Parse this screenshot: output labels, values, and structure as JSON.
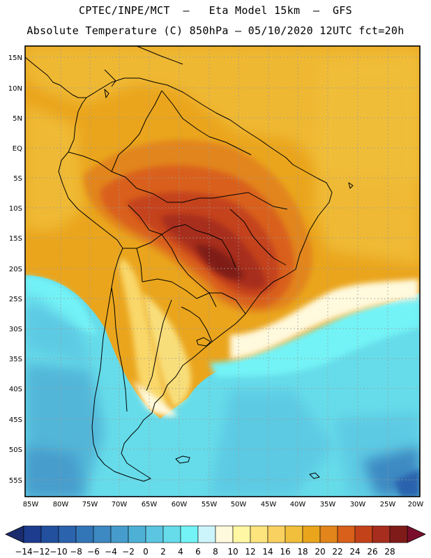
{
  "header": {
    "line1": "CPTEC/INPE/MCT  –   Eta Model 15km  –  GFS",
    "line2": "Absolute Temperature (C) 850hPa – 05/10/2020 12UTC fct=20h"
  },
  "map": {
    "region": "South America",
    "lat_ticks": [
      "15N",
      "10N",
      "5N",
      "EQ",
      "5S",
      "10S",
      "15S",
      "20S",
      "25S",
      "30S",
      "35S",
      "40S",
      "45S",
      "50S",
      "55S"
    ],
    "lon_ticks": [
      "85W",
      "80W",
      "75W",
      "70W",
      "65W",
      "60W",
      "55W",
      "50W",
      "45W",
      "40W",
      "35W",
      "30W",
      "25W",
      "20W"
    ],
    "features": [
      {
        "name": "warm-core-central-brazil",
        "label": "26–28 C"
      },
      {
        "name": "cold-south-atlantic",
        "label": "0–2 C"
      },
      {
        "name": "cold-south-pacific",
        "label": "-6–-2 C"
      }
    ]
  },
  "colorbar": {
    "labels": [
      "−14",
      "−12",
      "−10",
      "−8",
      "−6",
      "−4",
      "−2",
      "0",
      "2",
      "4",
      "6",
      "8",
      "10",
      "12",
      "14",
      "16",
      "18",
      "20",
      "22",
      "24",
      "26",
      "28"
    ],
    "colors": [
      "#1d3c8e",
      "#22509f",
      "#2b63ad",
      "#3376b8",
      "#3d89c2",
      "#469dcc",
      "#4fb0d6",
      "#5cc6e2",
      "#66dcea",
      "#73f3f6",
      "#ccf5fb",
      "#fff9dd",
      "#fff7a3",
      "#fde47d",
      "#f9d160",
      "#f1bf3b",
      "#eaa51d",
      "#e2851a",
      "#d9601a",
      "#c4421a",
      "#a72e1e",
      "#7f1c19"
    ],
    "left_arrow_color": "#1a2c6e",
    "right_arrow_color": "#7a0e2a"
  }
}
